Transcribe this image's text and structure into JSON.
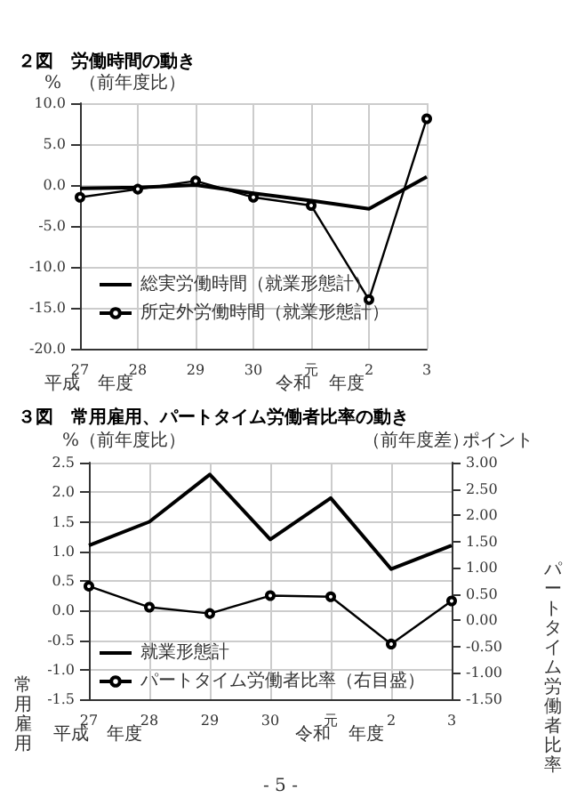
{
  "chart_data": [
    {
      "type": "line",
      "title": "２図　労働時間の動き",
      "ylabel": "%　（前年度比）",
      "categories": [
        "27",
        "28",
        "29",
        "30",
        "元",
        "2",
        "3"
      ],
      "series": [
        {
          "name": "総実労働時間（就業形態計）",
          "color": "#000000",
          "marker": "none",
          "values": [
            -0.4,
            -0.3,
            0.0,
            -1.0,
            -1.9,
            -2.9,
            1.0
          ]
        },
        {
          "name": "所定外労働時間（就業形態計）",
          "color": "#000000",
          "marker": "circle",
          "values": [
            -1.5,
            -0.5,
            0.5,
            -1.5,
            -2.5,
            -14.0,
            8.1
          ]
        }
      ],
      "ylim": [
        -20,
        10
      ],
      "yticks": [
        {
          "value": -20,
          "label": "-20.0"
        },
        {
          "value": -15,
          "label": "-15.0"
        },
        {
          "value": -10,
          "label": "-10.0"
        },
        {
          "value": -5,
          "label": "-5.0"
        },
        {
          "value": 0,
          "label": "0.0"
        },
        {
          "value": 5,
          "label": "5.0"
        },
        {
          "value": 10,
          "label": "10.0"
        }
      ],
      "grid": true,
      "legend": "left",
      "annotations": [
        "平成　年度",
        "令和　年度"
      ]
    },
    {
      "type": "line",
      "title": "３図　常用雇用、パートタイム労働者比率の動き",
      "ylabel": "常用雇用",
      "y2label": "パートタイム労働者比率",
      "categories": [
        "27",
        "28",
        "29",
        "30",
        "元",
        "2",
        "3"
      ],
      "series": [
        {
          "name": "就業形態計",
          "color": "#000000",
          "marker": "none",
          "values": [
            1.1,
            1.5,
            2.3,
            1.2,
            1.9,
            0.7,
            1.1
          ]
        },
        {
          "name": "パートタイム労働者比率（右目盛）",
          "color": "#000000",
          "marker": "circle",
          "axis": "y2",
          "values": [
            0.65,
            0.25,
            0.13,
            0.47,
            0.45,
            -0.45,
            0.37
          ]
        }
      ],
      "ylim": [
        -1.5,
        2.5
      ],
      "yticks": [
        {
          "value": -1.5,
          "label": "-1.5"
        },
        {
          "value": -1,
          "label": "-1.0"
        },
        {
          "value": -0.5,
          "label": "-0.5"
        },
        {
          "value": 0,
          "label": "0.0"
        },
        {
          "value": 0.5,
          "label": "0.5"
        },
        {
          "value": 1,
          "label": "1.0"
        },
        {
          "value": 1.5,
          "label": "1.5"
        },
        {
          "value": 2,
          "label": "2.0"
        },
        {
          "value": 2.5,
          "label": "2.5"
        }
      ],
      "y2lim": [
        -1.5,
        3
      ],
      "y2ticks": [
        {
          "value": -1.5,
          "label": "-1.50"
        },
        {
          "value": -1,
          "label": "-1.00"
        },
        {
          "value": -0.5,
          "label": "-0.50"
        },
        {
          "value": 0,
          "label": "0.00"
        },
        {
          "value": 0.5,
          "label": "0.50"
        },
        {
          "value": 1,
          "label": "1.00"
        },
        {
          "value": 1.5,
          "label": "1.50"
        },
        {
          "value": 2,
          "label": "2.00"
        },
        {
          "value": 2.5,
          "label": "2.50"
        },
        {
          "value": 3,
          "label": "3.00"
        }
      ],
      "grid": true,
      "legend": "bottom",
      "annotations": [
        "%（前年度比）",
        "（前年度差）",
        "ポイント",
        "平成　年度",
        "令和　年度",
        "- 5 -"
      ]
    }
  ]
}
